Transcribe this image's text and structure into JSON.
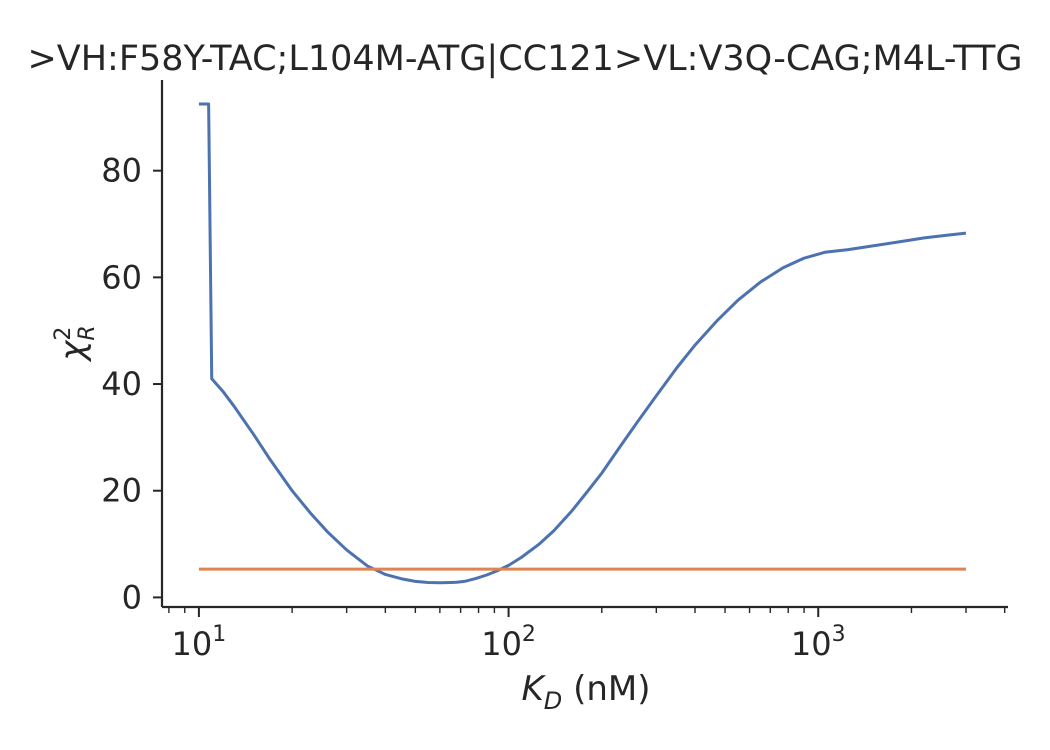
{
  "chart_data": {
    "type": "line",
    "title": ">VH:F58Y-TAC;L104M-ATG|CC121>VL:V3Q-CAG;M4L-TTG",
    "xlabel": "K_D (nM)",
    "xlabel_parts": {
      "symbol": "K",
      "subscript": "D",
      "unit": "(nM)"
    },
    "ylabel": "χ²_R",
    "ylabel_parts": {
      "symbol": "χ",
      "superscript": "2",
      "subscript": "R"
    },
    "x_scale": "log",
    "xlim": [
      7.6,
      4100
    ],
    "ylim": [
      -1.8,
      97
    ],
    "x_ticks": [
      {
        "value": 10,
        "base": "10",
        "exponent": "1"
      },
      {
        "value": 100,
        "base": "10",
        "exponent": "2"
      },
      {
        "value": 1000,
        "base": "10",
        "exponent": "3"
      }
    ],
    "y_ticks": [
      {
        "value": 0,
        "label": "0"
      },
      {
        "value": 20,
        "label": "20"
      },
      {
        "value": 40,
        "label": "40"
      },
      {
        "value": 60,
        "label": "60"
      },
      {
        "value": 80,
        "label": "80"
      }
    ],
    "grid": false,
    "series": [
      {
        "color": "#4c72b0",
        "x": [
          10,
          10.7,
          10.75,
          11,
          12,
          13,
          15,
          17,
          20,
          23,
          26,
          30,
          35,
          40,
          45,
          50,
          55,
          60,
          65,
          68,
          72,
          78,
          85,
          92,
          100,
          110,
          125,
          140,
          160,
          180,
          200,
          230,
          260,
          300,
          350,
          400,
          470,
          550,
          650,
          770,
          900,
          1050,
          1250,
          1500,
          1800,
          2200,
          2600,
          3000
        ],
        "y": [
          92.5,
          92.5,
          92.5,
          41,
          38.5,
          35.8,
          30.6,
          25.8,
          20,
          15.7,
          12.3,
          8.9,
          5.9,
          4.3,
          3.5,
          3.0,
          2.8,
          2.75,
          2.8,
          2.85,
          3.0,
          3.5,
          4.2,
          5.0,
          6.0,
          7.5,
          9.9,
          12.5,
          16.2,
          19.9,
          23.3,
          28.4,
          32.8,
          37.8,
          43.1,
          47.3,
          51.8,
          55.7,
          59.1,
          61.8,
          63.6,
          64.7,
          65.2,
          65.9,
          66.6,
          67.4,
          67.9,
          68.3
        ]
      },
      {
        "color": "#dd8452",
        "x": [
          10,
          3000
        ],
        "y": [
          5.3,
          5.3
        ]
      }
    ]
  }
}
